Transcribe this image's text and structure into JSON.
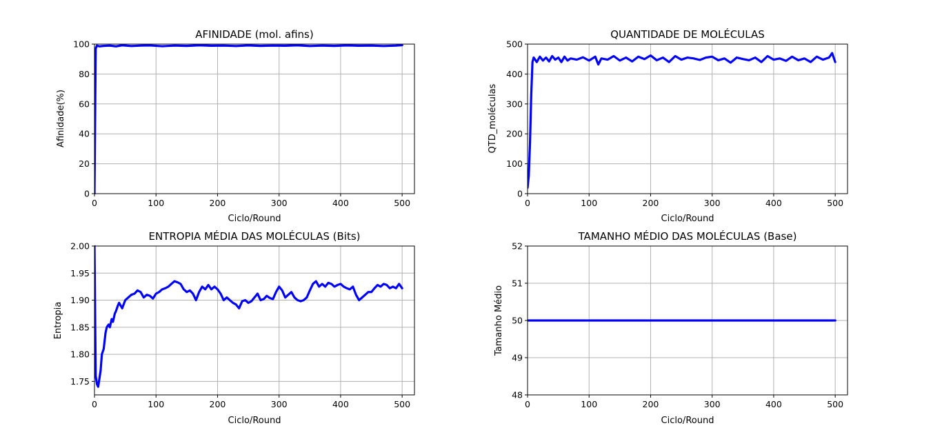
{
  "chart_data": [
    {
      "type": "line",
      "title": "AFINIDADE (mol. afins)",
      "xlabel": "Ciclo/Round",
      "ylabel": "Afinidade(%)",
      "xlim": [
        0,
        520
      ],
      "ylim": [
        0,
        100
      ],
      "xticks": [
        0,
        100,
        200,
        300,
        400,
        500
      ],
      "yticks": [
        0,
        20,
        40,
        60,
        80,
        100
      ],
      "ytick_decimals": 0,
      "grid": true,
      "color": "#0000ff",
      "series": [
        {
          "x": [
            0,
            2,
            4,
            8,
            15,
            25,
            35,
            45,
            60,
            75,
            90,
            110,
            130,
            150,
            170,
            190,
            210,
            230,
            250,
            270,
            290,
            310,
            330,
            350,
            370,
            390,
            410,
            430,
            450,
            470,
            490,
            500
          ],
          "values": [
            0,
            97,
            99,
            98.5,
            98.8,
            99,
            98.5,
            99.2,
            98.7,
            99,
            99.1,
            98.6,
            99,
            98.8,
            99.2,
            98.9,
            99,
            98.7,
            99.1,
            98.8,
            99,
            98.9,
            99.2,
            98.7,
            99,
            98.8,
            99.1,
            98.9,
            99,
            98.7,
            99,
            99.3
          ]
        }
      ]
    },
    {
      "type": "line",
      "title": "QUANTIDADE DE MOLÉCULAS",
      "xlabel": "Ciclo/Round",
      "ylabel": "QTD_moléculas",
      "xlim": [
        0,
        520
      ],
      "ylim": [
        0,
        500
      ],
      "xticks": [
        0,
        100,
        200,
        300,
        400,
        500
      ],
      "yticks": [
        0,
        100,
        200,
        300,
        400,
        500
      ],
      "ytick_decimals": 0,
      "grid": true,
      "color": "#0000ff",
      "series": [
        {
          "x": [
            0,
            2,
            4,
            6,
            8,
            10,
            15,
            20,
            25,
            30,
            35,
            40,
            45,
            50,
            55,
            60,
            65,
            70,
            80,
            90,
            100,
            110,
            115,
            120,
            130,
            140,
            150,
            160,
            170,
            180,
            190,
            200,
            210,
            220,
            230,
            240,
            250,
            260,
            270,
            280,
            290,
            300,
            310,
            320,
            330,
            340,
            350,
            360,
            370,
            380,
            390,
            400,
            410,
            420,
            430,
            440,
            450,
            460,
            470,
            480,
            490,
            495,
            500
          ],
          "values": [
            20,
            60,
            170,
            330,
            440,
            455,
            440,
            458,
            445,
            455,
            442,
            460,
            448,
            455,
            440,
            458,
            445,
            452,
            448,
            456,
            445,
            458,
            432,
            452,
            448,
            460,
            445,
            455,
            442,
            458,
            450,
            462,
            446,
            455,
            440,
            460,
            448,
            455,
            452,
            447,
            455,
            458,
            446,
            452,
            438,
            455,
            450,
            446,
            455,
            440,
            460,
            448,
            452,
            444,
            458,
            446,
            452,
            440,
            458,
            448,
            455,
            470,
            440
          ]
        }
      ]
    },
    {
      "type": "line",
      "title": "ENTROPIA MÉDIA DAS MOLÉCULAS (Bits)",
      "xlabel": "Ciclo/Round",
      "ylabel": "Entropia",
      "xlim": [
        0,
        520
      ],
      "ylim": [
        1.725,
        2.0
      ],
      "xticks": [
        0,
        100,
        200,
        300,
        400,
        500
      ],
      "yticks": [
        1.75,
        1.8,
        1.85,
        1.9,
        1.95,
        2.0
      ],
      "ytick_decimals": 2,
      "grid": true,
      "color": "#0000ff",
      "series": [
        {
          "x": [
            0,
            2,
            4,
            6,
            10,
            12,
            15,
            18,
            20,
            23,
            25,
            28,
            30,
            33,
            35,
            38,
            40,
            45,
            50,
            55,
            60,
            65,
            70,
            75,
            80,
            85,
            90,
            95,
            100,
            105,
            110,
            115,
            120,
            125,
            130,
            135,
            140,
            145,
            150,
            155,
            160,
            165,
            170,
            175,
            180,
            185,
            190,
            195,
            200,
            205,
            210,
            215,
            220,
            225,
            230,
            235,
            240,
            245,
            250,
            255,
            260,
            265,
            270,
            275,
            280,
            285,
            290,
            295,
            300,
            305,
            310,
            315,
            320,
            325,
            330,
            335,
            340,
            345,
            350,
            355,
            360,
            365,
            370,
            375,
            380,
            385,
            390,
            395,
            400,
            405,
            410,
            415,
            420,
            425,
            430,
            435,
            440,
            445,
            450,
            455,
            460,
            465,
            470,
            475,
            480,
            485,
            490,
            495,
            500
          ],
          "values": [
            2.0,
            1.76,
            1.745,
            1.74,
            1.77,
            1.8,
            1.81,
            1.84,
            1.85,
            1.855,
            1.85,
            1.865,
            1.86,
            1.875,
            1.88,
            1.89,
            1.895,
            1.885,
            1.9,
            1.905,
            1.91,
            1.912,
            1.918,
            1.915,
            1.905,
            1.91,
            1.908,
            1.903,
            1.912,
            1.915,
            1.92,
            1.922,
            1.925,
            1.93,
            1.935,
            1.933,
            1.93,
            1.92,
            1.915,
            1.918,
            1.912,
            1.9,
            1.915,
            1.925,
            1.92,
            1.928,
            1.92,
            1.925,
            1.92,
            1.912,
            1.9,
            1.905,
            1.9,
            1.895,
            1.892,
            1.885,
            1.898,
            1.9,
            1.895,
            1.898,
            1.905,
            1.912,
            1.9,
            1.902,
            1.908,
            1.904,
            1.902,
            1.915,
            1.925,
            1.918,
            1.905,
            1.91,
            1.915,
            1.905,
            1.9,
            1.898,
            1.9,
            1.905,
            1.918,
            1.93,
            1.935,
            1.925,
            1.93,
            1.925,
            1.932,
            1.93,
            1.925,
            1.928,
            1.93,
            1.925,
            1.922,
            1.92,
            1.925,
            1.91,
            1.9,
            1.905,
            1.91,
            1.915,
            1.915,
            1.922,
            1.928,
            1.925,
            1.93,
            1.928,
            1.922,
            1.925,
            1.922,
            1.93,
            1.922
          ]
        }
      ]
    },
    {
      "type": "line",
      "title": "TAMANHO MÉDIO DAS MOLÉCULAS (Base)",
      "xlabel": "Ciclo/Round",
      "ylabel": "Tamanho Médio",
      "xlim": [
        0,
        520
      ],
      "ylim": [
        48,
        52
      ],
      "xticks": [
        0,
        100,
        200,
        300,
        400,
        500
      ],
      "yticks": [
        48,
        49,
        50,
        51,
        52
      ],
      "ytick_decimals": 0,
      "grid": true,
      "color": "#0000ff",
      "series": [
        {
          "x": [
            0,
            500
          ],
          "values": [
            50,
            50
          ]
        }
      ]
    }
  ]
}
